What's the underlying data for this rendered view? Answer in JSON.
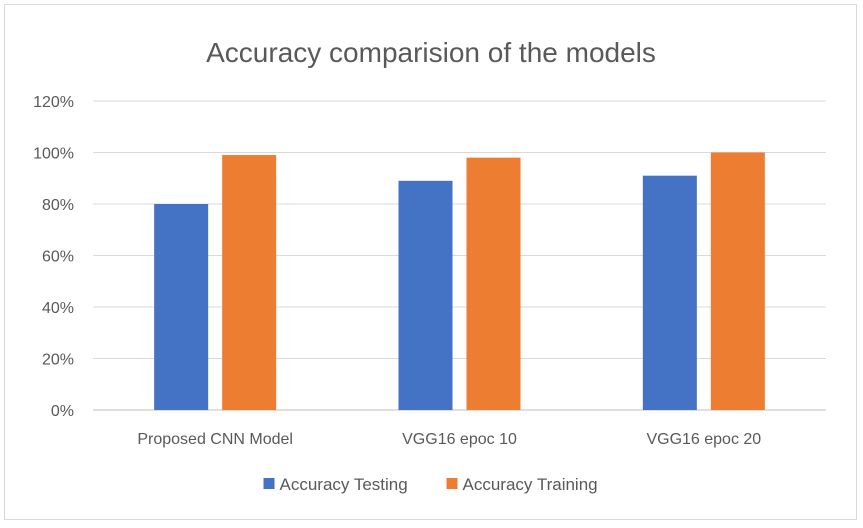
{
  "chart_data": {
    "type": "bar",
    "title": "Accuracy comparision of the models",
    "categories": [
      "Proposed CNN Model",
      "VGG16 epoc 10",
      "VGG16 epoc 20"
    ],
    "series": [
      {
        "name": "Accuracy Testing",
        "values": [
          80,
          89,
          91
        ],
        "color": "#4472c4"
      },
      {
        "name": "Accuracy Training",
        "values": [
          99,
          98,
          100
        ],
        "color": "#ed7d31"
      }
    ],
    "ylim": [
      0,
      120
    ],
    "yticks": [
      "0%",
      "20%",
      "40%",
      "60%",
      "80%",
      "100%",
      "120%"
    ],
    "ytick_values": [
      0,
      20,
      40,
      60,
      80,
      100,
      120
    ],
    "grid": true,
    "legend": "bottom",
    "gridline_color": "#d9d9d9",
    "axis_color": "#bfbfbf"
  }
}
